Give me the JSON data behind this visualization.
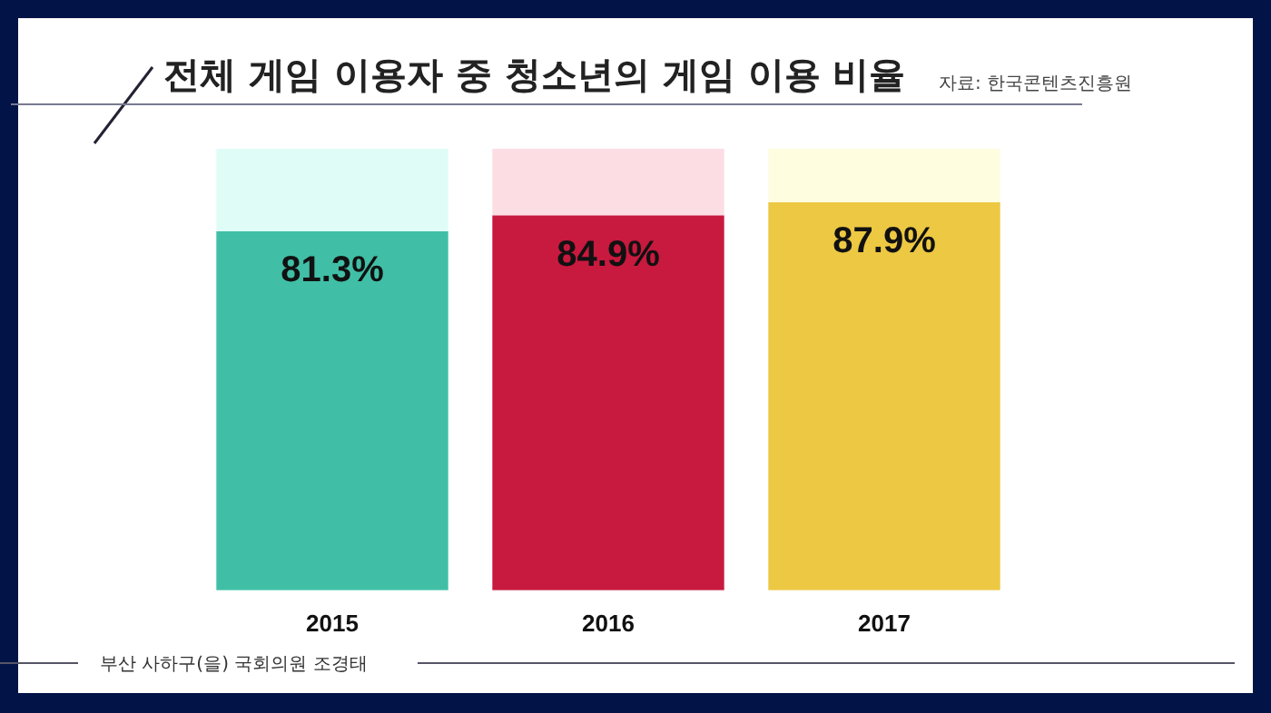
{
  "chart_data": {
    "type": "bar",
    "title": "전체 게임 이용자 중 청소년의 게임 이용 비율",
    "annotations": [
      "자료: 한국콘텐츠진흥원",
      "부산 사하구(을) 국회의원 조경태"
    ],
    "categories": [
      "2015",
      "2016",
      "2017"
    ],
    "stacked": true,
    "ylim": [
      0,
      100
    ],
    "tick_labels": "x",
    "grid": false,
    "legend": false,
    "series": [
      {
        "values": [
          81.3,
          84.9,
          87.9
        ],
        "colors": [
          "#40bfa6",
          "#c8193f",
          "#ecc843"
        ],
        "value_labels": [
          "81.3%",
          "84.9%",
          "87.9%"
        ]
      },
      {
        "values": [
          18.7,
          15.1,
          12.1
        ],
        "colors": [
          "#e0fcf6",
          "#fddde4",
          "#fefde0"
        ]
      }
    ]
  }
}
